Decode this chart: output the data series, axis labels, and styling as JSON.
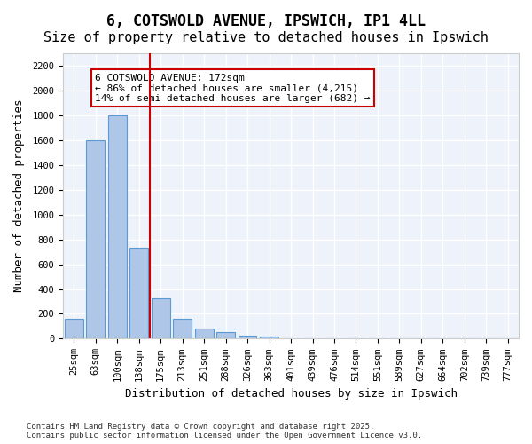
{
  "title": "6, COTSWOLD AVENUE, IPSWICH, IP1 4LL",
  "subtitle": "Size of property relative to detached houses in Ipswich",
  "xlabel": "Distribution of detached houses by size in Ipswich",
  "ylabel": "Number of detached properties",
  "categories": [
    "25sqm",
    "63sqm",
    "100sqm",
    "138sqm",
    "175sqm",
    "213sqm",
    "251sqm",
    "288sqm",
    "326sqm",
    "363sqm",
    "401sqm",
    "439sqm",
    "476sqm",
    "514sqm",
    "551sqm",
    "589sqm",
    "627sqm",
    "664sqm",
    "702sqm",
    "739sqm",
    "777sqm"
  ],
  "values": [
    160,
    1600,
    1800,
    730,
    325,
    160,
    85,
    50,
    25,
    20,
    0,
    0,
    0,
    0,
    0,
    0,
    0,
    0,
    0,
    0,
    0
  ],
  "bar_color": "#aec6e8",
  "bar_edge_color": "#5b9bd5",
  "reference_line_color": "#cc0000",
  "annotation_line1": "6 COTSWOLD AVENUE: 172sqm",
  "annotation_line2": "← 86% of detached houses are smaller (4,215)",
  "annotation_line3": "14% of semi-detached houses are larger (682) →",
  "annotation_box_color": "#cc0000",
  "ylim": [
    0,
    2300
  ],
  "yticks": [
    0,
    200,
    400,
    600,
    800,
    1000,
    1200,
    1400,
    1600,
    1800,
    2000,
    2200
  ],
  "background_color": "#eef3fb",
  "grid_color": "#ffffff",
  "footnote": "Contains HM Land Registry data © Crown copyright and database right 2025.\nContains public sector information licensed under the Open Government Licence v3.0.",
  "title_fontsize": 12,
  "subtitle_fontsize": 11,
  "axis_label_fontsize": 9,
  "tick_fontsize": 7.5,
  "annotation_fontsize": 8
}
